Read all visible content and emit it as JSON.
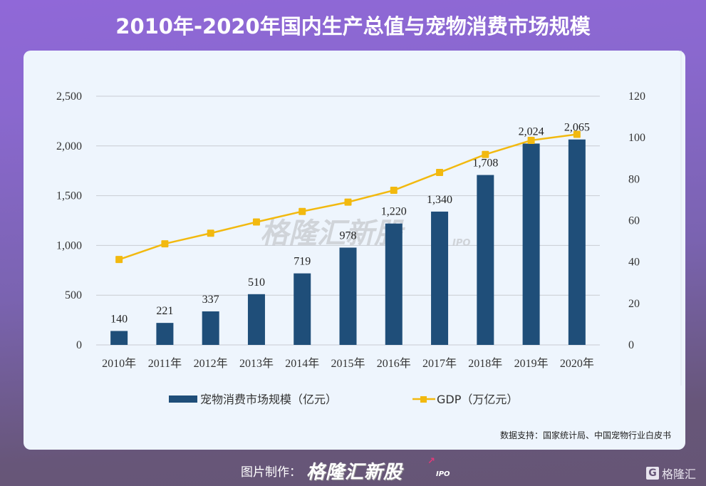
{
  "title": "2010年-2020年国内生产总值与宠物消费市场规模",
  "source": "数据支持：国家统计局、中国宠物行业白皮书",
  "footer": {
    "credit_label": "图片制作：",
    "logo_text": "格隆汇新股",
    "logo_suffix": "IPO",
    "corner_brand": "格隆汇",
    "corner_icon": "G"
  },
  "watermark": {
    "text": "格隆汇新股",
    "suffix": "IPO"
  },
  "colors": {
    "bar": "#1f4e79",
    "line": "#f2b90f",
    "grid": "#c8ccd2"
  },
  "chart_data": {
    "type": "bar+line",
    "title": "2010年-2020年国内生产总值与宠物消费市场规模",
    "categories": [
      "2010年",
      "2011年",
      "2012年",
      "2013年",
      "2014年",
      "2015年",
      "2016年",
      "2017年",
      "2018年",
      "2019年",
      "2020年"
    ],
    "series": [
      {
        "name": "宠物消费市场规模（亿元）",
        "type": "bar",
        "axis": "left",
        "values": [
          140,
          221,
          337,
          510,
          719,
          978,
          1220,
          1340,
          1708,
          2024,
          2065
        ],
        "labels": [
          "140",
          "221",
          "337",
          "510",
          "719",
          "978",
          "1,220",
          "1,340",
          "1,708",
          "2,024",
          "2,065"
        ]
      },
      {
        "name": "GDP（万亿元）",
        "type": "line",
        "axis": "right",
        "values": [
          41.2,
          48.8,
          53.9,
          59.3,
          64.4,
          68.9,
          74.6,
          83.2,
          91.9,
          98.7,
          101.6
        ]
      }
    ],
    "left_axis": {
      "range": [
        0,
        2500
      ],
      "ticks": [
        0,
        500,
        1000,
        1500,
        2000,
        2500
      ],
      "tick_labels": [
        "0",
        "500",
        "1,000",
        "1,500",
        "2,000",
        "2,500"
      ]
    },
    "right_axis": {
      "range": [
        0,
        120
      ],
      "ticks": [
        0,
        20,
        40,
        60,
        80,
        100,
        120
      ],
      "tick_labels": [
        "0",
        "20",
        "40",
        "60",
        "80",
        "100",
        "120"
      ]
    },
    "grid": true,
    "legend_position": "bottom-center",
    "xlabel": "",
    "ylabel": ""
  }
}
